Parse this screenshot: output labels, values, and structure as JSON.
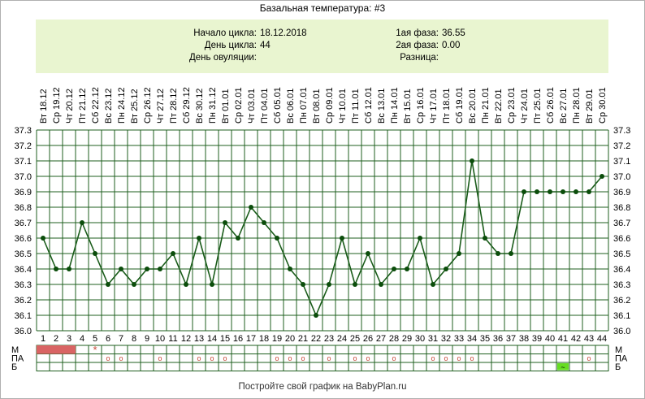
{
  "title": "Базальная температура: #3",
  "info": {
    "cycle_start_label": "Начало цикла:",
    "cycle_start_value": "18.12.2018",
    "cycle_day_label": "День цикла:",
    "cycle_day_value": "44",
    "ovulation_day_label": "День овуляции:",
    "ovulation_day_value": "",
    "phase1_label": "1ая фаза:",
    "phase1_value": "36.55",
    "phase2_label": "2ая фаза:",
    "phase2_value": "0.00",
    "difference_label": "Разница:",
    "difference_value": ""
  },
  "footer": "Постройте свой график на BabyPlan.ru",
  "row_labels": [
    "М",
    "ПА",
    "Б"
  ],
  "colors": {
    "line": "#1a5c1a",
    "point": "#0b4d0b",
    "grid": "#1f5f1f",
    "menses": "#d96464",
    "marker": "#c84a3a",
    "b_cell": "#66dd22",
    "info_bg": "#e9f5d0"
  },
  "chart_data": {
    "type": "line",
    "title": "Базальная температура: #3",
    "xlabel": "",
    "ylabel": "",
    "ylim": [
      36.0,
      37.3
    ],
    "yticks": [
      "36.0",
      "36.1",
      "36.2",
      "36.3",
      "36.4",
      "36.5",
      "36.6",
      "36.7",
      "36.8",
      "36.9",
      "37.0",
      "37.1",
      "37.2",
      "37.3"
    ],
    "grid": true,
    "days": [
      1,
      2,
      3,
      4,
      5,
      6,
      7,
      8,
      9,
      10,
      11,
      12,
      13,
      14,
      15,
      16,
      17,
      18,
      19,
      20,
      21,
      22,
      23,
      24,
      25,
      26,
      27,
      28,
      29,
      30,
      31,
      32,
      33,
      34,
      35,
      36,
      37,
      38,
      39,
      40,
      41,
      42,
      43,
      44
    ],
    "dates": [
      "Вт 18.12",
      "Ср 19.12",
      "Чт 20.12",
      "Пт 21.12",
      "Сб 22.12",
      "Вс 23.12",
      "Пн 24.12",
      "Вт 25.12",
      "Ср 26.12",
      "Чт 27.12",
      "Пт 28.12",
      "Сб 29.12",
      "Вс 30.12",
      "Пн 31.12",
      "Вт 01.01",
      "Ср 02.01",
      "Чт 03.01",
      "Пт 04.01",
      "Сб 05.01",
      "Вс 06.01",
      "Пн 07.01",
      "Вт 08.01",
      "Ср 09.01",
      "Чт 10.01",
      "Пт 11.01",
      "Сб 12.01",
      "Вс 13.01",
      "Пн 14.01",
      "Вт 15.01",
      "Ср 16.01",
      "Чт 17.01",
      "Пт 18.01",
      "Сб 19.01",
      "Вс 20.01",
      "Пн 21.01",
      "Вт 22.01",
      "Ср 23.01",
      "Чт 24.01",
      "Пт 25.01",
      "Сб 26.01",
      "Вс 27.01",
      "Пн 28.01",
      "Вт 29.01",
      "Ср 30.01"
    ],
    "temperatures": [
      36.6,
      36.4,
      36.4,
      36.7,
      36.5,
      36.3,
      36.4,
      36.3,
      36.4,
      36.4,
      36.5,
      36.3,
      36.6,
      36.3,
      36.7,
      36.6,
      36.8,
      36.7,
      36.6,
      36.4,
      36.3,
      36.1,
      36.3,
      36.6,
      36.3,
      36.5,
      36.3,
      36.4,
      36.4,
      36.6,
      36.3,
      36.4,
      36.5,
      37.1,
      36.6,
      36.5,
      36.5,
      36.9,
      36.9,
      36.9,
      36.9,
      36.9,
      36.9,
      37.0
    ],
    "menses_days": [
      1,
      2,
      3
    ],
    "menses_star_days": [
      5
    ],
    "pa_days": [
      6,
      7,
      10,
      13,
      14,
      15,
      19,
      20,
      21,
      23,
      25,
      26,
      28,
      31,
      32,
      33,
      34,
      43
    ],
    "b_days": [
      41
    ],
    "b_symbol": "~",
    "pa_symbol": "o",
    "menses_star_symbol": "*"
  }
}
